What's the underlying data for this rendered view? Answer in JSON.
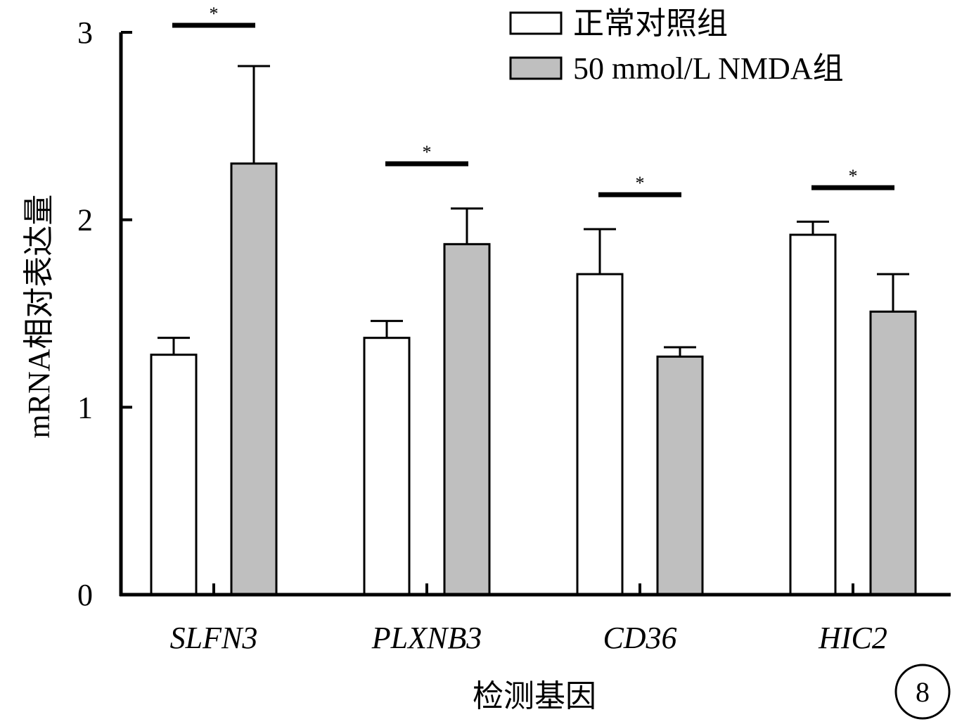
{
  "chart_data": {
    "type": "bar",
    "categories": [
      "SLFN3",
      "PLXNB3",
      "CD36",
      "HIC2"
    ],
    "series": [
      {
        "name": "正常对照组",
        "values": [
          1.28,
          1.37,
          1.71,
          1.92
        ],
        "errors": [
          0.09,
          0.09,
          0.24,
          0.07
        ],
        "color": "#ffffff"
      },
      {
        "name": "50 mmol/L NMDA组",
        "values": [
          2.3,
          1.87,
          1.27,
          1.51
        ],
        "errors": [
          0.52,
          0.19,
          0.05,
          0.2
        ],
        "color": "#bfbfbf"
      }
    ],
    "significance": [
      "*",
      "*",
      "*",
      "*"
    ],
    "xlabel": "检测基因",
    "ylabel": "mRNA相对表达量",
    "ylim": [
      0,
      3
    ],
    "yticks": [
      "0",
      "1",
      "2",
      "3"
    ],
    "legend_position": "top-right",
    "grid": false
  },
  "panel_label": "8"
}
